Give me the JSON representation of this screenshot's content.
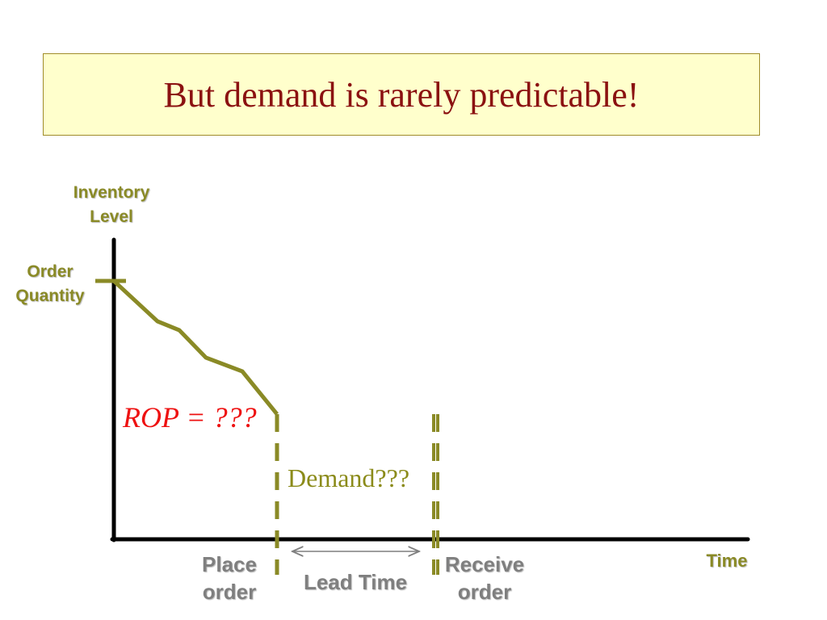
{
  "slide": {
    "title": "But demand is rarely predictable!"
  },
  "diagram": {
    "y_axis_label": [
      "Inventory",
      "Level"
    ],
    "order_quantity_label": [
      "Order",
      "Quantity"
    ],
    "x_axis_label": "Time",
    "rop_label": "ROP = ???",
    "demand_label": "Demand???",
    "place_order_label": [
      "Place",
      "order"
    ],
    "lead_time_label": "Lead Time",
    "receive_order_label": [
      "Receive",
      "order"
    ],
    "colors": {
      "title_text": "#8b1111",
      "title_box_fill": "#ffffcc",
      "inventory_line": "#8a8a26",
      "rop_text": "#ee1111",
      "axis": "#000000"
    }
  }
}
